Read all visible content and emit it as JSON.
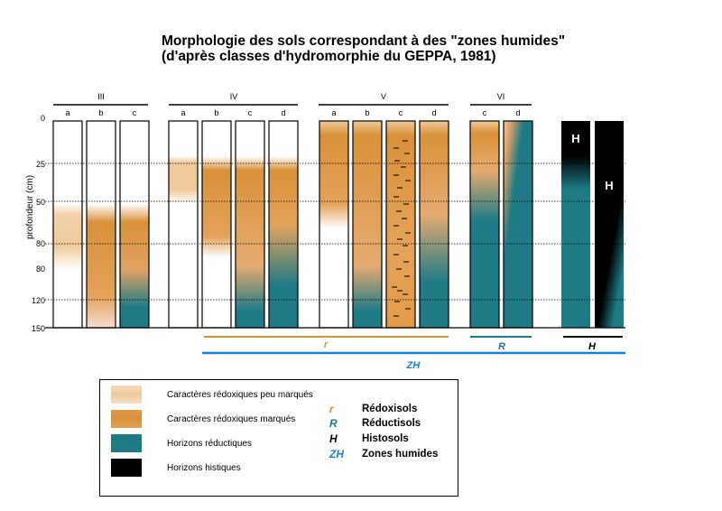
{
  "title_line1": "Morphologie des sols correspondant à des \"zones humides\"",
  "title_line2": "(d'après classes d'hydromorphie du GEPPA, 1981)",
  "y_axis": {
    "label": "profondeur (cm)",
    "ticks": [
      "0",
      "25",
      "50",
      "80",
      "80",
      "120",
      "150"
    ]
  },
  "classes": [
    {
      "name": "III",
      "subs": [
        "a",
        "b",
        "c"
      ]
    },
    {
      "name": "IV",
      "subs": [
        "a",
        "b",
        "c",
        "d"
      ]
    },
    {
      "name": "V",
      "subs": [
        "a",
        "b",
        "c",
        "d"
      ]
    },
    {
      "name": "VI",
      "subs": [
        "c",
        "d"
      ]
    }
  ],
  "histic_labels": [
    "H",
    "H"
  ],
  "groups": {
    "r": "r",
    "R": "R",
    "H": "H",
    "ZH": "ZH"
  },
  "legend": {
    "swatches": [
      {
        "label": "Caractères rédoxiques peu marqués"
      },
      {
        "label": "Caractères rédoxiques marqués"
      },
      {
        "label": "Horizons réductiques"
      },
      {
        "label": "Horizons histiques"
      }
    ],
    "symbols": [
      {
        "sym": "r",
        "label": "Rédoxisols"
      },
      {
        "sym": "R",
        "label": "Réductisols"
      },
      {
        "sym": "H",
        "label": "Histosols"
      },
      {
        "sym": "ZH",
        "label": "Zones humides"
      }
    ]
  },
  "colors": {
    "light_redox": "#f0c99a",
    "redox": "#d9913a",
    "reductic": "#1e7b86",
    "histic": "#000000",
    "r_line": "#d9913a",
    "R_line": "#1e7b86",
    "H_line": "#000000",
    "ZH_line": "#1a7fd0"
  }
}
